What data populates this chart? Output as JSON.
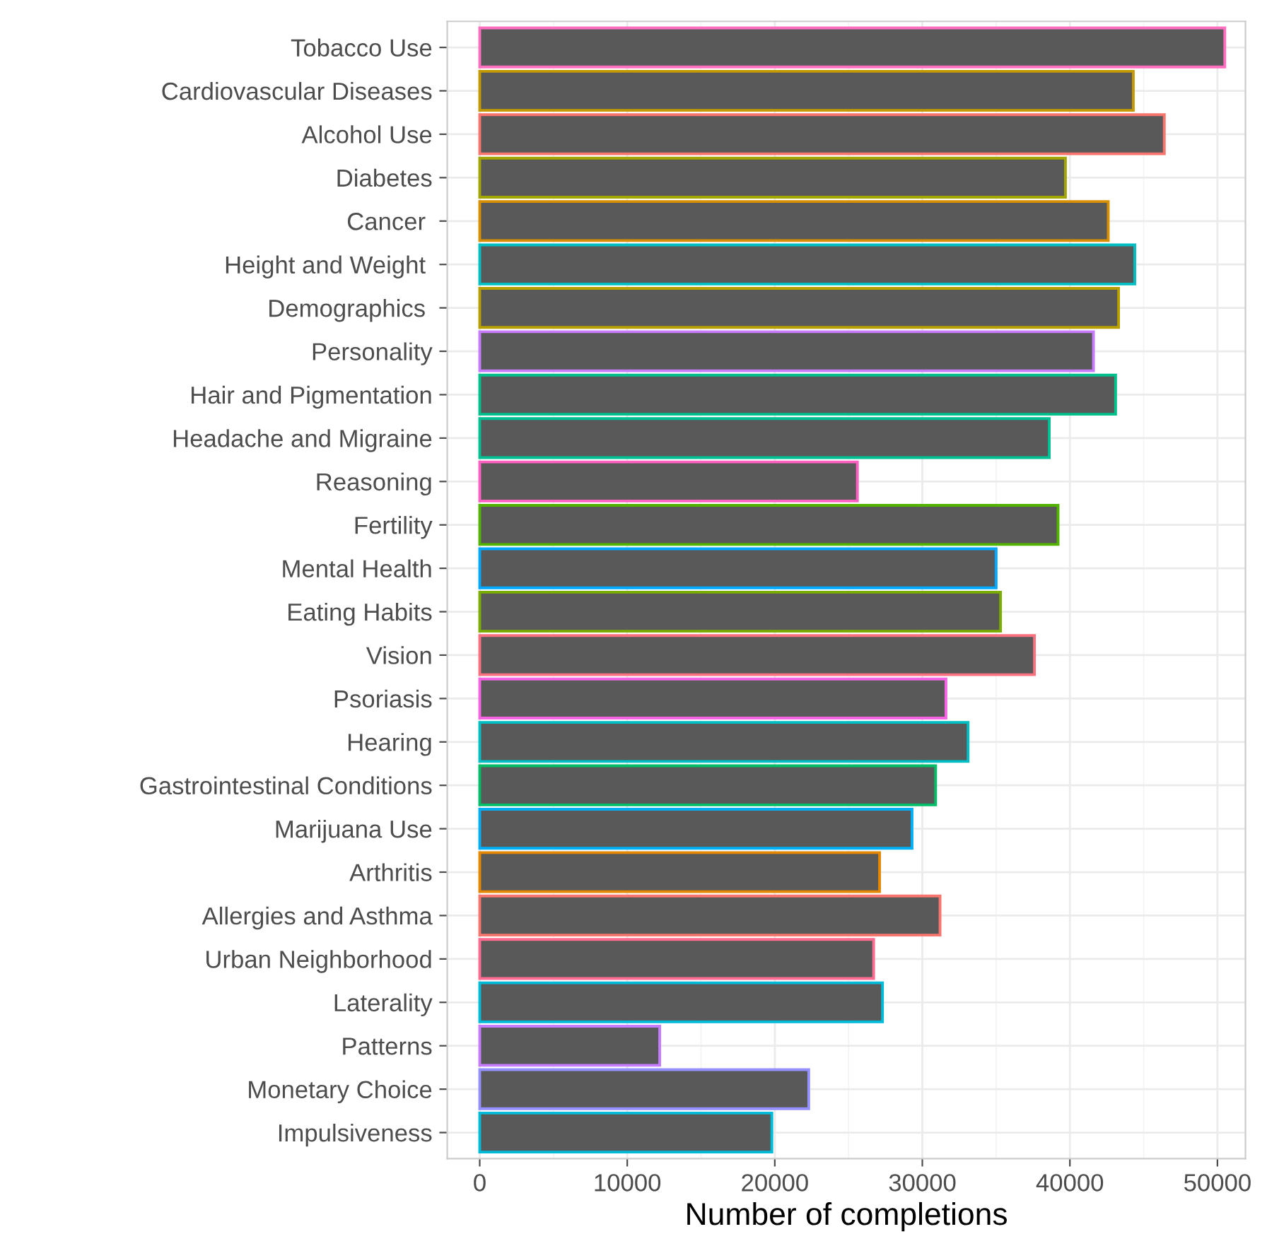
{
  "chart_data": {
    "type": "bar",
    "orientation": "horizontal",
    "xlabel": "Number of completions",
    "categories": [
      "Tobacco Use",
      "Cardiovascular Diseases",
      "Alcohol Use",
      "Diabetes",
      "Cancer ",
      "Height and Weight ",
      "Demographics ",
      "Personality",
      "Hair and Pigmentation",
      "Headache and Migraine",
      "Reasoning",
      "Fertility",
      "Mental Health",
      "Eating Habits",
      "Vision",
      "Psoriasis",
      "Hearing",
      "Gastrointestinal Conditions",
      "Marijuana Use",
      "Arthritis",
      "Allergies and Asthma",
      "Urban Neighborhood",
      "Laterality",
      "Patterns",
      "Monetary Choice",
      "Impulsiveness"
    ],
    "values": [
      50500,
      44300,
      46400,
      39700,
      42600,
      44400,
      43300,
      41600,
      43100,
      38600,
      25600,
      39200,
      35000,
      35300,
      37600,
      31600,
      33100,
      30900,
      29300,
      27100,
      31200,
      26700,
      27300,
      12200,
      22300,
      19800
    ],
    "colors": [
      "#ff6fc0",
      "#c49a00",
      "#f8766d",
      "#a3a500",
      "#d89000",
      "#00bfc4",
      "#b79f00",
      "#c77cff",
      "#00c08b",
      "#00c094",
      "#ff61c3",
      "#53b400",
      "#00a9ff",
      "#7cae00",
      "#fc717f",
      "#f564e3",
      "#00bfc4",
      "#00be67",
      "#00b0f6",
      "#e58700",
      "#f8766d",
      "#ff6c91",
      "#00bcd8",
      "#c77cff",
      "#9590ff",
      "#00bcd8"
    ],
    "xlim": [
      -2200,
      51900
    ],
    "xticks": [
      0,
      10000,
      20000,
      30000,
      40000,
      50000
    ],
    "grid": true
  }
}
